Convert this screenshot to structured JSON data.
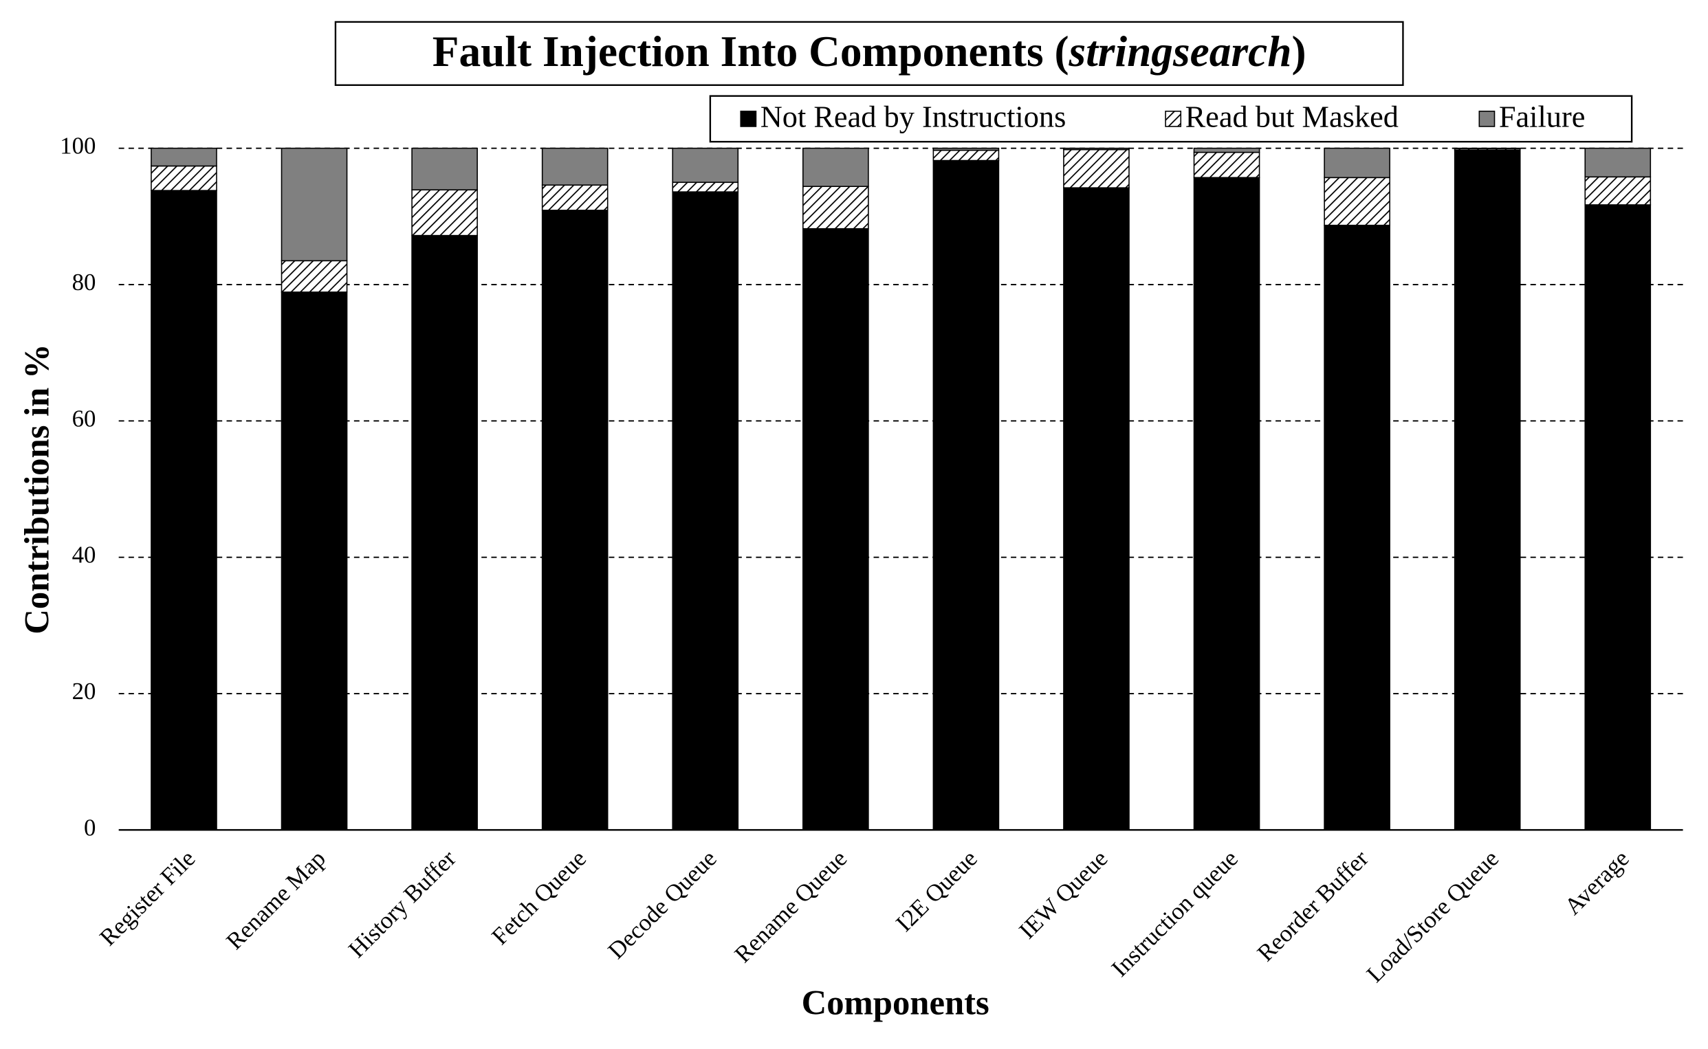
{
  "chart_data": {
    "type": "stacked_bar",
    "title": [
      {
        "text": "Fault Injection Into Components  ("
      },
      {
        "text": "stringsearch",
        "italic": true
      },
      {
        "text": ")"
      }
    ],
    "x_label": "Components",
    "y_label": "Contributions in %",
    "categories": [
      "Register File",
      "Rename Map",
      "History Buffer",
      "Fetch Queue",
      "Decode Queue",
      "Rename Queue",
      "I2E Queue",
      "IEW Queue",
      "Instruction queue",
      "Reorder Buffer",
      "Load/Store Queue",
      "Average"
    ],
    "series": [
      {
        "name": "Not Read by Instructions",
        "color": "#000000",
        "values": [
          93.8,
          78.9,
          87.2,
          90.9,
          93.6,
          88.2,
          98.2,
          94.2,
          95.7,
          88.7,
          99.7,
          91.7
        ]
      },
      {
        "name": "Read but Masked",
        "color": "hatch",
        "values": [
          3.6,
          4.6,
          6.7,
          3.7,
          1.4,
          6.2,
          1.5,
          5.6,
          3.7,
          7.0,
          0.2,
          4.1
        ]
      },
      {
        "name": "Failure",
        "color": "#808080",
        "values": [
          2.6,
          16.5,
          6.1,
          5.4,
          5.0,
          5.6,
          0.3,
          0.2,
          0.6,
          4.3,
          0.1,
          4.2
        ]
      }
    ],
    "ylim": [
      0,
      100
    ],
    "yticks": [
      0,
      20,
      40,
      60,
      80,
      100
    ],
    "grid": true,
    "legend": "top-right"
  }
}
